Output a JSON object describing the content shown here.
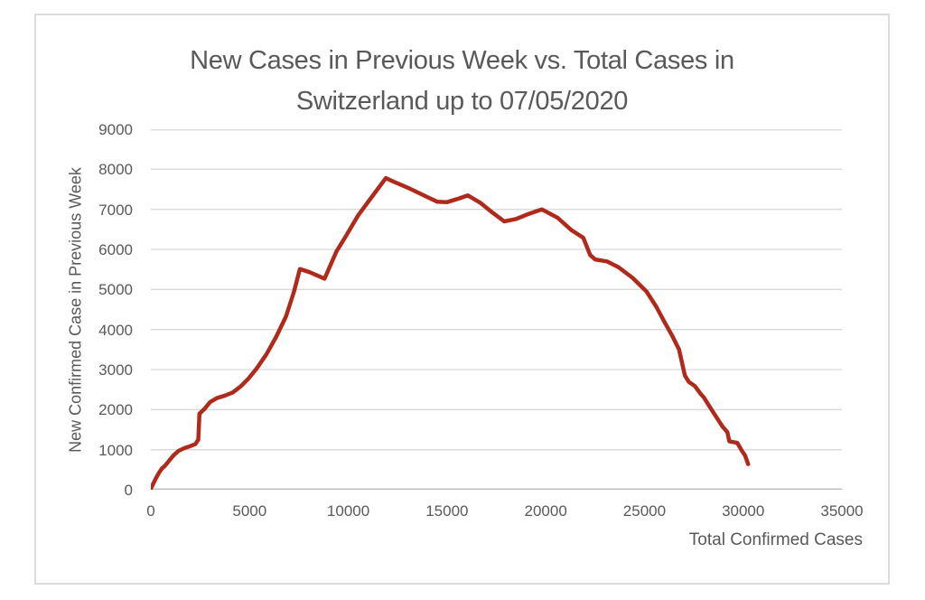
{
  "window": {
    "background": "#ffffff",
    "frame_border_color": "#dcdcdc"
  },
  "chart_data": {
    "type": "line",
    "title": "New Cases in Previous Week vs. Total Cases in Switzerland up to 07/05/2020",
    "title_lines": [
      "New Cases in Previous Week vs. Total Cases in",
      "Switzerland up to 07/05/2020"
    ],
    "xlabel": "Total Confirmed Cases",
    "ylabel": "New Confirmed Case in Previous Week",
    "xlim": [
      0,
      35000
    ],
    "ylim": [
      0,
      9000
    ],
    "x_ticks": [
      0,
      5000,
      10000,
      15000,
      20000,
      25000,
      30000,
      35000
    ],
    "y_ticks": [
      0,
      1000,
      2000,
      3000,
      4000,
      5000,
      6000,
      7000,
      8000,
      9000
    ],
    "grid": "horizontal-only",
    "legend": "none",
    "line_color": "#b02a1c",
    "line_width": 4.5,
    "text_color": "#595959",
    "gridline_color": "#d9d9d9",
    "axis_line_color": "#bfbfbf",
    "series": [
      {
        "name": "new-cases-in-previous-week",
        "points": [
          [
            0,
            30
          ],
          [
            120,
            150
          ],
          [
            260,
            290
          ],
          [
            420,
            430
          ],
          [
            560,
            530
          ],
          [
            700,
            590
          ],
          [
            900,
            710
          ],
          [
            1150,
            860
          ],
          [
            1400,
            970
          ],
          [
            1700,
            1040
          ],
          [
            2000,
            1090
          ],
          [
            2250,
            1140
          ],
          [
            2400,
            1250
          ],
          [
            2460,
            1900
          ],
          [
            2700,
            2010
          ],
          [
            3000,
            2190
          ],
          [
            3350,
            2290
          ],
          [
            3750,
            2350
          ],
          [
            4150,
            2430
          ],
          [
            4550,
            2580
          ],
          [
            4950,
            2780
          ],
          [
            5350,
            3020
          ],
          [
            5850,
            3380
          ],
          [
            6350,
            3820
          ],
          [
            6850,
            4330
          ],
          [
            7250,
            4950
          ],
          [
            7550,
            5510
          ],
          [
            8050,
            5430
          ],
          [
            8800,
            5270
          ],
          [
            9400,
            5950
          ],
          [
            9900,
            6350
          ],
          [
            10500,
            6850
          ],
          [
            11100,
            7250
          ],
          [
            11900,
            7780
          ],
          [
            12300,
            7690
          ],
          [
            13100,
            7520
          ],
          [
            13900,
            7330
          ],
          [
            14500,
            7190
          ],
          [
            15000,
            7180
          ],
          [
            15600,
            7270
          ],
          [
            16050,
            7350
          ],
          [
            16700,
            7160
          ],
          [
            17300,
            6920
          ],
          [
            17900,
            6700
          ],
          [
            18500,
            6760
          ],
          [
            19100,
            6880
          ],
          [
            19800,
            7000
          ],
          [
            20600,
            6790
          ],
          [
            21300,
            6480
          ],
          [
            21900,
            6290
          ],
          [
            22250,
            5860
          ],
          [
            22500,
            5750
          ],
          [
            23100,
            5700
          ],
          [
            23700,
            5550
          ],
          [
            24400,
            5290
          ],
          [
            25100,
            4950
          ],
          [
            25600,
            4570
          ],
          [
            26000,
            4200
          ],
          [
            26400,
            3850
          ],
          [
            26750,
            3500
          ],
          [
            27050,
            2850
          ],
          [
            27250,
            2690
          ],
          [
            27550,
            2590
          ],
          [
            27850,
            2390
          ],
          [
            28000,
            2310
          ],
          [
            28450,
            1960
          ],
          [
            28950,
            1580
          ],
          [
            29200,
            1440
          ],
          [
            29300,
            1210
          ],
          [
            29700,
            1170
          ],
          [
            29950,
            960
          ],
          [
            30100,
            850
          ],
          [
            30250,
            640
          ]
        ]
      }
    ]
  }
}
